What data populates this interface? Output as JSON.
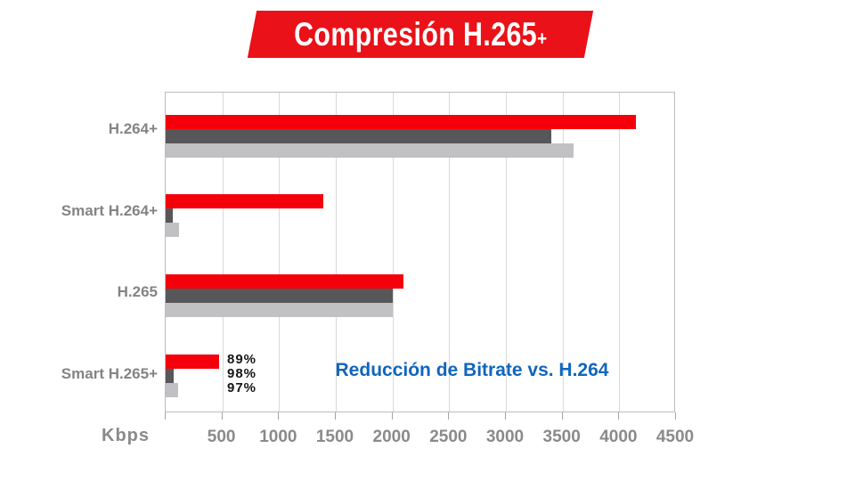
{
  "banner": {
    "title_main": "Compresión H.265",
    "title_plus": "+",
    "bg_color": "#ea1118",
    "text_color": "#ffffff"
  },
  "chart_data": {
    "type": "bar",
    "orientation": "horizontal",
    "title": "Compresión H.265+",
    "categories": [
      "H.264+",
      "Smart H.264+",
      "H.265",
      "Smart H.265+"
    ],
    "series": [
      {
        "name": "red",
        "color": "#f5000a",
        "values": [
          4150,
          1390,
          2100,
          470
        ]
      },
      {
        "name": "dark_gray",
        "color": "#57575a",
        "values": [
          3400,
          60,
          2000,
          70
        ]
      },
      {
        "name": "light_gray",
        "color": "#c1c1c3",
        "values": [
          3600,
          120,
          2000,
          110
        ]
      }
    ],
    "xlabel": "Kbps",
    "ylabel": "",
    "xlim": [
      0,
      4500
    ],
    "x_ticks": [
      500,
      1000,
      1500,
      2000,
      2500,
      3000,
      3500,
      4000,
      4500
    ],
    "grid": true,
    "legend": false,
    "annotations": {
      "reduction_percentages": [
        "89%",
        "98%",
        "97%"
      ],
      "reduction_note": "Reducción de Bitrate vs. H.264",
      "note_color": "#1066bd",
      "percent_color": "#161616"
    }
  }
}
